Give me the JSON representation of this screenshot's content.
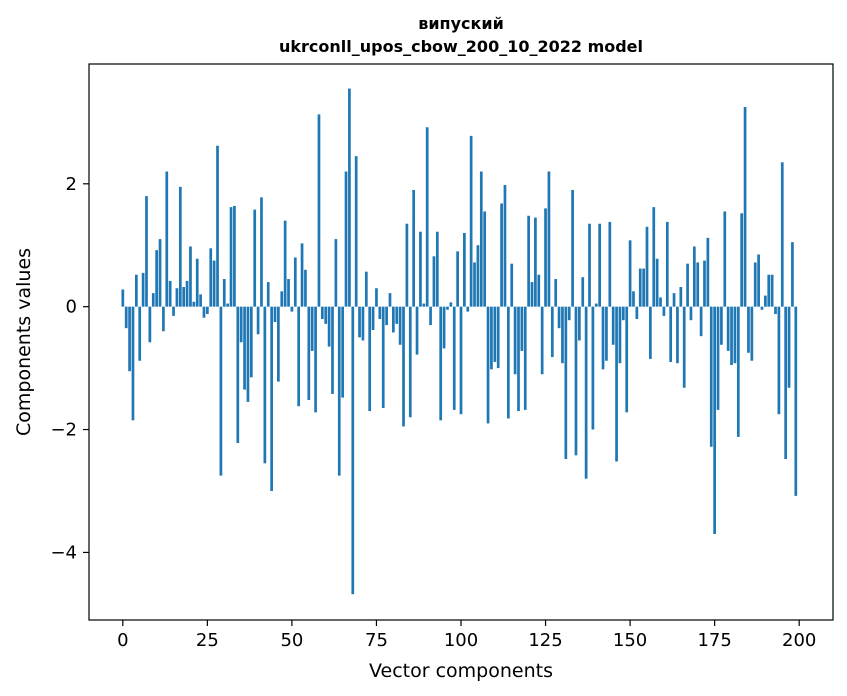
{
  "chart_data": {
    "type": "bar",
    "title": "випуский",
    "subtitle": "ukrconll_upos_cbow_200_10_2022 model",
    "xlabel": "Vector components",
    "ylabel": "Components values",
    "xlim": [
      -10,
      210
    ],
    "ylim": [
      -5.1,
      3.95
    ],
    "xticks": [
      0,
      25,
      50,
      75,
      100,
      125,
      150,
      175,
      200
    ],
    "yticks": [
      -4,
      -2,
      0,
      2
    ],
    "ytick_labels": [
      "−4",
      "−2",
      "0",
      "2"
    ],
    "bar_color": "#1f77b4",
    "grid": false,
    "x": [
      0,
      1,
      2,
      3,
      4,
      5,
      6,
      7,
      8,
      9,
      10,
      11,
      12,
      13,
      14,
      15,
      16,
      17,
      18,
      19,
      20,
      21,
      22,
      23,
      24,
      25,
      26,
      27,
      28,
      29,
      30,
      31,
      32,
      33,
      34,
      35,
      36,
      37,
      38,
      39,
      40,
      41,
      42,
      43,
      44,
      45,
      46,
      47,
      48,
      49,
      50,
      51,
      52,
      53,
      54,
      55,
      56,
      57,
      58,
      59,
      60,
      61,
      62,
      63,
      64,
      65,
      66,
      67,
      68,
      69,
      70,
      71,
      72,
      73,
      74,
      75,
      76,
      77,
      78,
      79,
      80,
      81,
      82,
      83,
      84,
      85,
      86,
      87,
      88,
      89,
      90,
      91,
      92,
      93,
      94,
      95,
      96,
      97,
      98,
      99,
      100,
      101,
      102,
      103,
      104,
      105,
      106,
      107,
      108,
      109,
      110,
      111,
      112,
      113,
      114,
      115,
      116,
      117,
      118,
      119,
      120,
      121,
      122,
      123,
      124,
      125,
      126,
      127,
      128,
      129,
      130,
      131,
      132,
      133,
      134,
      135,
      136,
      137,
      138,
      139,
      140,
      141,
      142,
      143,
      144,
      145,
      146,
      147,
      148,
      149,
      150,
      151,
      152,
      153,
      154,
      155,
      156,
      157,
      158,
      159,
      160,
      161,
      162,
      163,
      164,
      165,
      166,
      167,
      168,
      169,
      170,
      171,
      172,
      173,
      174,
      175,
      176,
      177,
      178,
      179,
      180,
      181,
      182,
      183,
      184,
      185,
      186,
      187,
      188,
      189,
      190,
      191,
      192,
      193,
      194,
      195,
      196,
      197,
      198,
      199
    ],
    "values": [
      0.28,
      -0.35,
      -1.05,
      -1.85,
      0.52,
      -0.88,
      0.55,
      1.8,
      -0.58,
      0.22,
      0.92,
      1.1,
      -0.4,
      2.2,
      0.42,
      -0.15,
      0.3,
      1.95,
      0.32,
      0.42,
      0.98,
      0.08,
      0.78,
      0.2,
      -0.18,
      -0.12,
      0.95,
      0.75,
      2.62,
      -2.75,
      0.45,
      0.05,
      1.62,
      1.64,
      -2.22,
      -0.58,
      -1.35,
      -1.55,
      -1.15,
      1.58,
      -0.45,
      1.78,
      -2.55,
      0.4,
      -3.0,
      -0.25,
      -1.22,
      0.25,
      1.4,
      0.45,
      -0.08,
      0.8,
      -1.62,
      1.03,
      0.6,
      -1.52,
      -0.72,
      -1.72,
      3.13,
      -0.2,
      -0.28,
      -0.65,
      -1.42,
      1.1,
      -2.75,
      -1.48,
      2.2,
      3.55,
      -4.68,
      2.45,
      -0.5,
      -0.55,
      0.57,
      -1.7,
      -0.38,
      0.3,
      -0.2,
      -1.65,
      -0.3,
      0.22,
      -0.42,
      -0.28,
      -0.62,
      -1.95,
      1.35,
      -1.8,
      1.9,
      -0.78,
      1.22,
      0.05,
      2.92,
      -0.3,
      0.82,
      1.22,
      -1.85,
      -0.68,
      -0.05,
      0.07,
      -1.68,
      0.9,
      -1.75,
      1.2,
      -0.08,
      2.78,
      0.72,
      1.0,
      2.2,
      1.55,
      -1.9,
      -1.02,
      -0.9,
      -1.0,
      1.68,
      1.98,
      -1.82,
      0.7,
      -1.1,
      -1.7,
      -0.72,
      -1.68,
      1.48,
      0.4,
      1.45,
      0.52,
      -1.1,
      1.6,
      2.2,
      -0.82,
      0.45,
      -0.35,
      -0.92,
      -2.48,
      -0.22,
      1.9,
      -2.42,
      -0.55,
      0.48,
      -2.8,
      1.35,
      -2.0,
      0.05,
      1.35,
      -1.02,
      -0.88,
      1.38,
      -0.62,
      -2.52,
      -0.92,
      -0.22,
      -1.72,
      1.08,
      0.25,
      -0.2,
      0.62,
      0.62,
      1.3,
      -0.85,
      1.62,
      0.78,
      0.15,
      -0.15,
      1.38,
      -0.9,
      0.22,
      -0.92,
      0.32,
      -1.32,
      0.7,
      -0.22,
      0.98,
      0.72,
      -0.48,
      0.75,
      1.12,
      -2.28,
      -3.7,
      -1.68,
      -0.62,
      1.55,
      -0.72,
      -0.95,
      -0.92,
      -2.12,
      1.52,
      3.25,
      -0.75,
      -0.88,
      0.72,
      0.85,
      -0.05,
      0.18,
      0.52,
      0.52,
      -0.12,
      -1.75,
      2.35,
      -2.48,
      -1.32,
      1.05,
      -3.08
    ]
  }
}
